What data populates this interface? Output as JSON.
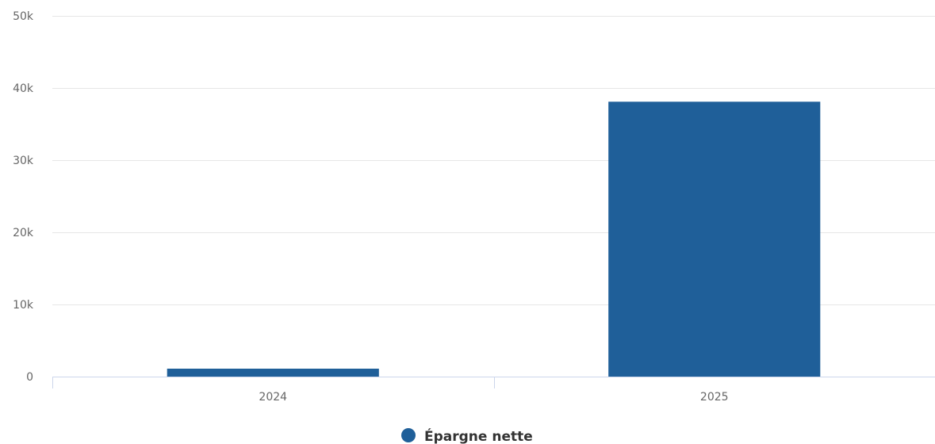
{
  "chart_data": {
    "type": "bar",
    "categories": [
      "2024",
      "2025"
    ],
    "series": [
      {
        "name": "Épargne nette",
        "values": [
          1100,
          38100
        ],
        "color": "#1f5f99"
      }
    ],
    "ylim": [
      0,
      50000
    ],
    "y_ticks": [
      0,
      10000,
      20000,
      30000,
      40000,
      50000
    ],
    "y_tick_labels": [
      "0",
      "10k",
      "20k",
      "30k",
      "40k",
      "50k"
    ],
    "grid": true,
    "legend_position": "bottom-center",
    "title": "",
    "xlabel": "",
    "ylabel": ""
  }
}
